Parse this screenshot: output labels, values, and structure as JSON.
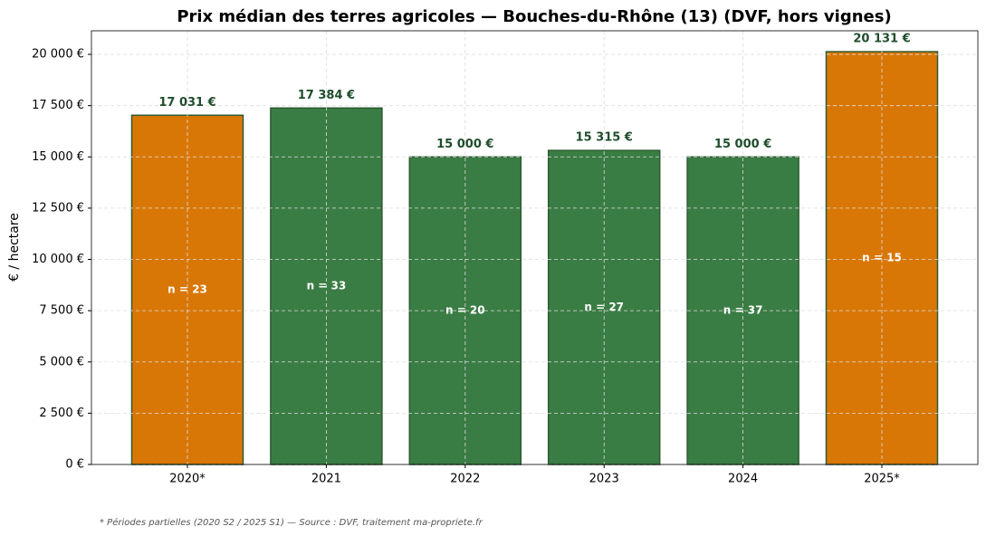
{
  "chart_data": {
    "type": "bar",
    "title": "Prix médian des terres agricoles — Bouches-du-Rhône (13) (DVF, hors vignes)",
    "y_label": "€ / hectare",
    "footnote": "* Périodes partielles (2020 S2 / 2025 S1) — Source : DVF, traitement ma-propriete.fr",
    "categories": [
      "2020*",
      "2021",
      "2022",
      "2023",
      "2024",
      "2025*"
    ],
    "values": [
      17031,
      17384,
      15000,
      15315,
      15000,
      20131
    ],
    "value_labels": [
      "17 031 €",
      "17 384 €",
      "15 000 €",
      "15 315 €",
      "15 000 €",
      "20 131 €"
    ],
    "count_labels": [
      "n = 23",
      "n = 33",
      "n = 20",
      "n = 27",
      "n = 37",
      "n = 15"
    ],
    "colors": [
      "#d97706",
      "#3a7d44",
      "#3a7d44",
      "#3a7d44",
      "#3a7d44",
      "#d97706"
    ],
    "ylim": [
      0,
      21150
    ],
    "yticks": [
      {
        "value": 0,
        "label": "0 €"
      },
      {
        "value": 2500,
        "label": "2 500 €"
      },
      {
        "value": 5000,
        "label": "5 000 €"
      },
      {
        "value": 7500,
        "label": "7 500 €"
      },
      {
        "value": 10000,
        "label": "10 000 €"
      },
      {
        "value": 12500,
        "label": "12 500 €"
      },
      {
        "value": 15000,
        "label": "15 000 €"
      },
      {
        "value": 17500,
        "label": "17 500 €"
      },
      {
        "value": 20000,
        "label": "20 000 €"
      }
    ],
    "grid": true
  }
}
